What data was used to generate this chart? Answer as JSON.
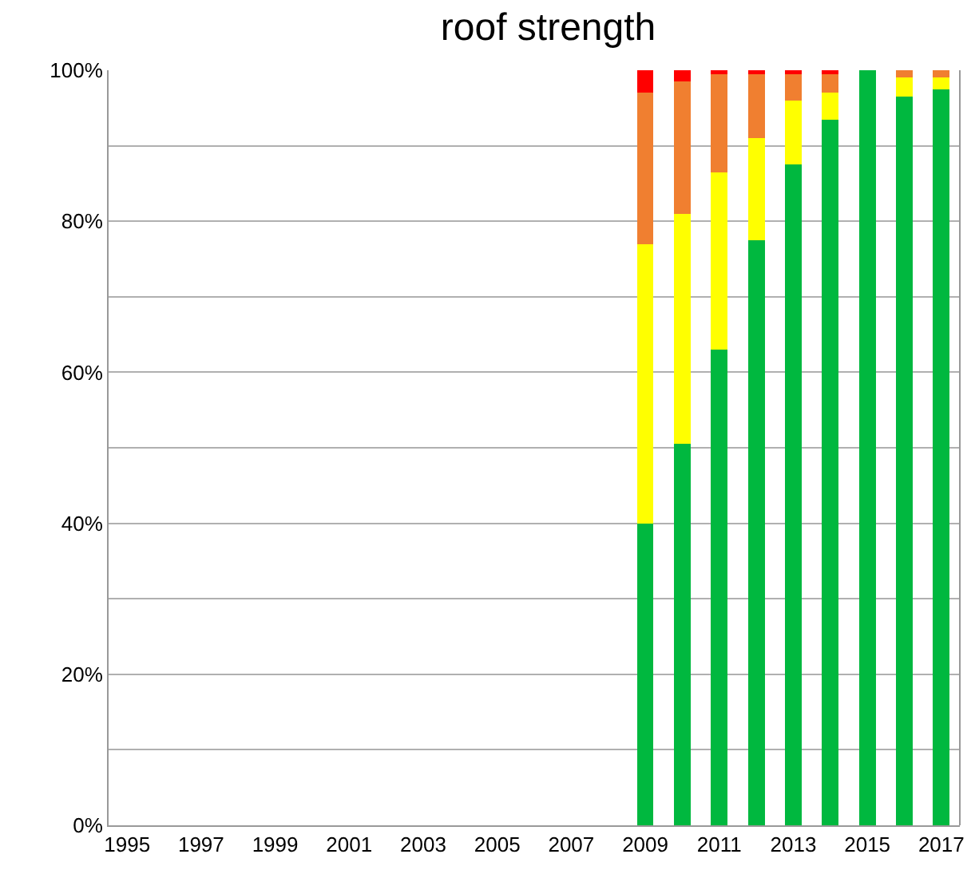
{
  "chart_data": {
    "type": "bar",
    "title": "roof strength",
    "stacked": true,
    "grid": "y",
    "categories": [
      "1995",
      null,
      "1997",
      null,
      "1999",
      null,
      "2001",
      null,
      "2003",
      null,
      "2005",
      null,
      "2007",
      null,
      "2009",
      null,
      "2011",
      null,
      "2013",
      null,
      "2015",
      null,
      "2017"
    ],
    "ylim": [
      0,
      100
    ],
    "yticks": [
      {
        "value": 0,
        "label": "0%"
      },
      {
        "value": 10,
        "label": null
      },
      {
        "value": 20,
        "label": "20%"
      },
      {
        "value": 30,
        "label": null
      },
      {
        "value": 40,
        "label": "40%"
      },
      {
        "value": 50,
        "label": null
      },
      {
        "value": 60,
        "label": "60%"
      },
      {
        "value": 70,
        "label": null
      },
      {
        "value": 80,
        "label": "80%"
      },
      {
        "value": 90,
        "label": null
      },
      {
        "value": 100,
        "label": "100%"
      }
    ],
    "series": [
      {
        "color": "#00b83f",
        "values": [
          null,
          null,
          null,
          null,
          null,
          null,
          null,
          null,
          null,
          null,
          null,
          null,
          null,
          null,
          40,
          50.5,
          63,
          77.5,
          87.5,
          93.5,
          100,
          96.5,
          97.5
        ]
      },
      {
        "color": "#ffff00",
        "values": [
          null,
          null,
          null,
          null,
          null,
          null,
          null,
          null,
          null,
          null,
          null,
          null,
          null,
          null,
          37,
          30.5,
          23.5,
          13.5,
          8.5,
          3.5,
          null,
          2.5,
          1.5
        ]
      },
      {
        "color": "#f07f30",
        "values": [
          null,
          null,
          null,
          null,
          null,
          null,
          null,
          null,
          null,
          null,
          null,
          null,
          null,
          null,
          20,
          17.5,
          13,
          8.5,
          3.5,
          2.5,
          null,
          1,
          1
        ]
      },
      {
        "color": "#ff0000",
        "values": [
          null,
          null,
          null,
          null,
          null,
          null,
          null,
          null,
          null,
          null,
          null,
          null,
          null,
          null,
          3,
          1.5,
          0.5,
          0.5,
          0.5,
          0.5,
          null,
          null,
          null
        ]
      }
    ]
  }
}
